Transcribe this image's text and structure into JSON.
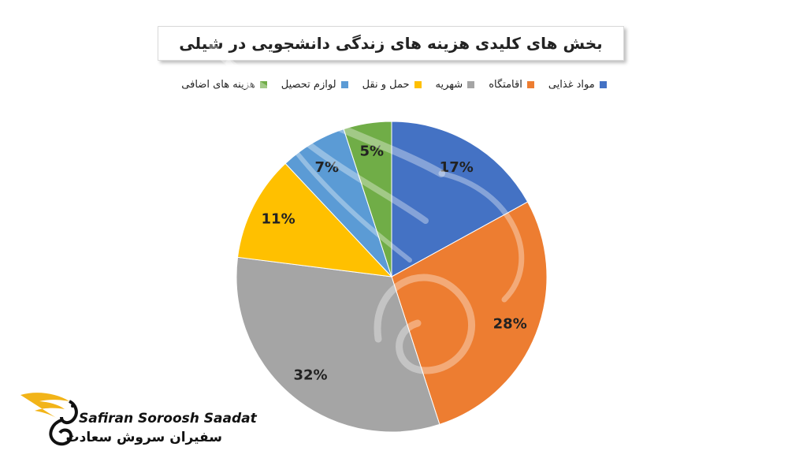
{
  "chart_data": {
    "type": "pie",
    "title": "بخش های کلیدی هزینه های زندگی دانشجویی در شیلی",
    "slices": [
      {
        "name": "مواد غذایی",
        "value": 17,
        "label": "17%",
        "color": "#4472c4"
      },
      {
        "name": "اقامتگاه",
        "value": 28,
        "label": "28%",
        "color": "#ed7d31"
      },
      {
        "name": "شهریه",
        "value": 32,
        "label": "32%",
        "color": "#a5a5a5"
      },
      {
        "name": "حمل و نقل",
        "value": 11,
        "label": "11%",
        "color": "#ffc000"
      },
      {
        "name": "لوازم تحصیل",
        "value": 7,
        "label": "7%",
        "color": "#5b9bd5"
      },
      {
        "name": "هزینه های اضافی",
        "value": 5,
        "label": "5%",
        "color": "#70ad47"
      }
    ],
    "legend_position": "top"
  },
  "logo": {
    "latin": "Safiran Soroosh Saadat",
    "persian": "سفیران سروش سعادت"
  }
}
